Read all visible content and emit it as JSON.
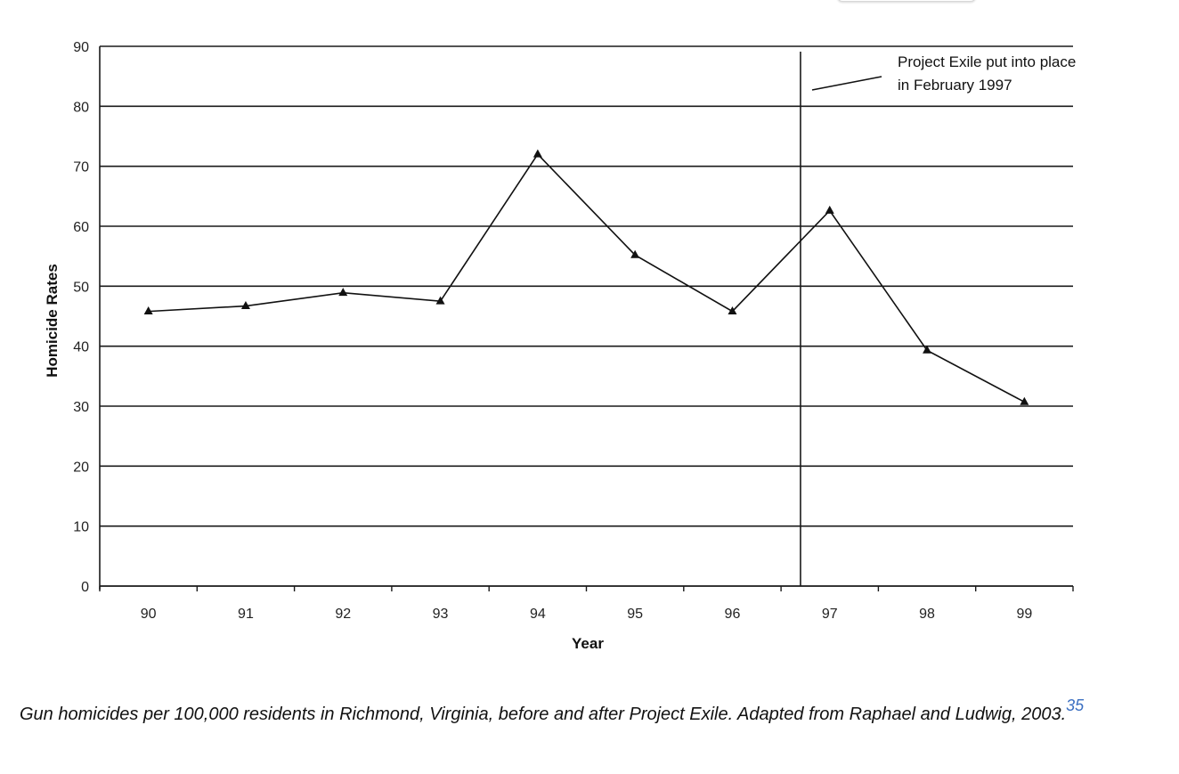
{
  "chart_data": {
    "type": "line",
    "title": "",
    "xlabel": "Year",
    "ylabel": "Homicide Rates",
    "categories": [
      "90",
      "91",
      "92",
      "93",
      "94",
      "95",
      "96",
      "97",
      "98",
      "99"
    ],
    "series": [
      {
        "values": [
          45.8,
          46.7,
          48.9,
          47.5,
          72.0,
          55.2,
          45.8,
          62.6,
          39.3,
          30.7
        ],
        "marker": "triangle",
        "color": "#111111"
      }
    ],
    "ylim": [
      0,
      90
    ],
    "yticks": [
      "0",
      "10",
      "20",
      "30",
      "40",
      "50",
      "60",
      "70",
      "80",
      "90"
    ],
    "grid": "horizontal",
    "annotation": {
      "line1": "Project Exile put into place",
      "line2": "in February 1997",
      "event_x_position": 96.7
    }
  },
  "caption": {
    "text": "Gun homicides per 100,000 residents in Richmond, Virginia, before and after Project Exile. Adapted from Raphael and Ludwig, 2003.",
    "ref": "35"
  }
}
